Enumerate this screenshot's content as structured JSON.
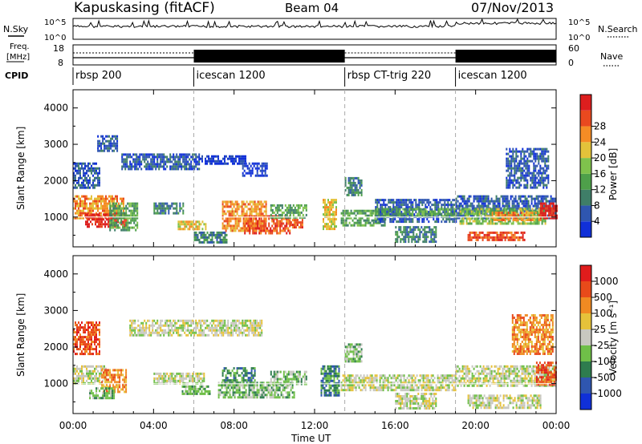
{
  "header": {
    "station": "Kapuskasing (fitACF)",
    "beam": "Beam 04",
    "date": "07/Nov/2013"
  },
  "noise_panel": {
    "left_label": "N.Sky",
    "right_label": "N.Search",
    "tick_top": "10^5",
    "tick_bottom": "10^0"
  },
  "freq_panel": {
    "left_label_line1": "Freq.",
    "left_label_line2": "[MHz]",
    "left_tick_top": "18",
    "left_tick_bottom": "8",
    "right_label": "Nave",
    "right_tick_top": "60",
    "right_tick_bottom": "0"
  },
  "cpid_panel": {
    "label": "CPID",
    "segments": [
      {
        "start_hour": 0.0,
        "end_hour": 6.0,
        "name": "rbsp 200"
      },
      {
        "start_hour": 6.0,
        "end_hour": 13.5,
        "name": "icescan 1200"
      },
      {
        "start_hour": 13.5,
        "end_hour": 19.0,
        "name": "rbsp CT-trig 220"
      },
      {
        "start_hour": 19.0,
        "end_hour": 24.0,
        "name": "icescan 1200"
      }
    ]
  },
  "x_axis": {
    "label": "Time UT",
    "ticks": [
      "00:00",
      "04:00",
      "08:00",
      "12:00",
      "16:00",
      "20:00",
      "00:00"
    ]
  },
  "colorbars": {
    "power": {
      "label": "Power [dB]",
      "ticks": [
        "4",
        "8",
        "12",
        "16",
        "20",
        "24",
        "28"
      ],
      "colors": [
        "#1030d8",
        "#2f56b0",
        "#3f7e68",
        "#4ea04a",
        "#7fc24c",
        "#e3c23a",
        "#f58c25",
        "#e9491f",
        "#dd1e1e"
      ]
    },
    "velocity": {
      "label": "Velocity [m s⁻¹]",
      "ticks": [
        "1000",
        "500",
        "100",
        "25",
        "-25",
        "-100",
        "-500",
        "-1000"
      ],
      "colors": [
        "#1030d8",
        "#2f56b0",
        "#2e7c4e",
        "#6fbf48",
        "#c8c8c0",
        "#e6c23a",
        "#f08a22",
        "#e84a1a",
        "#e01c1c"
      ]
    }
  },
  "chart_data": {
    "type": "heatmap",
    "xlabel": "Time UT",
    "ylabel": "Slant Range [km]",
    "xlim_hours": [
      0,
      24
    ],
    "ylim_km": [
      180,
      4500
    ],
    "y_ticks": [
      1000,
      2000,
      3000,
      4000
    ],
    "gridlines_vertical_hours": [
      6.0,
      13.5,
      19.0
    ],
    "panels": [
      {
        "name": "power",
        "colorbar": "power",
        "regions": [
          {
            "t0": 0.0,
            "t1": 1.3,
            "r0": 1800,
            "r1": 2500,
            "level": 1
          },
          {
            "t0": 0.0,
            "t1": 2.5,
            "r0": 1000,
            "r1": 1600,
            "level": 6
          },
          {
            "t0": 0.6,
            "t1": 2.6,
            "r0": 750,
            "r1": 1100,
            "level": 8
          },
          {
            "t0": 1.8,
            "t1": 3.2,
            "r0": 650,
            "r1": 1400,
            "level": 3
          },
          {
            "t0": 1.2,
            "t1": 2.2,
            "r0": 2850,
            "r1": 3250,
            "level": 1
          },
          {
            "t0": 2.4,
            "t1": 6.3,
            "r0": 2350,
            "r1": 2750,
            "level": 1
          },
          {
            "t0": 6.3,
            "t1": 8.6,
            "r0": 2450,
            "r1": 2700,
            "level": 0
          },
          {
            "t0": 8.4,
            "t1": 9.6,
            "r0": 2150,
            "r1": 2500,
            "level": 0
          },
          {
            "t0": 4.0,
            "t1": 5.5,
            "r0": 1100,
            "r1": 1400,
            "level": 2
          },
          {
            "t0": 5.2,
            "t1": 6.6,
            "r0": 650,
            "r1": 900,
            "level": 5
          },
          {
            "t0": 6.0,
            "t1": 7.6,
            "r0": 300,
            "r1": 600,
            "level": 2
          },
          {
            "t0": 7.4,
            "t1": 9.6,
            "r0": 650,
            "r1": 1450,
            "level": 6
          },
          {
            "t0": 8.5,
            "t1": 10.8,
            "r0": 550,
            "r1": 1050,
            "level": 7
          },
          {
            "t0": 9.8,
            "t1": 11.6,
            "r0": 1000,
            "r1": 1350,
            "level": 3
          },
          {
            "t0": 10.8,
            "t1": 11.4,
            "r0": 700,
            "r1": 950,
            "level": 7
          },
          {
            "t0": 12.4,
            "t1": 13.1,
            "r0": 650,
            "r1": 1500,
            "level": 5
          },
          {
            "t0": 13.3,
            "t1": 15.5,
            "r0": 800,
            "r1": 1200,
            "level": 3
          },
          {
            "t0": 13.5,
            "t1": 14.3,
            "r0": 1600,
            "r1": 2100,
            "level": 2
          },
          {
            "t0": 15.0,
            "t1": 19.0,
            "r0": 900,
            "r1": 1500,
            "level": 1
          },
          {
            "t0": 15.0,
            "t1": 19.0,
            "r0": 1000,
            "r1": 1250,
            "level": 3
          },
          {
            "t0": 16.0,
            "t1": 18.0,
            "r0": 350,
            "r1": 750,
            "level": 2
          },
          {
            "t0": 19.0,
            "t1": 24.0,
            "r0": 950,
            "r1": 1600,
            "level": 1
          },
          {
            "t0": 19.2,
            "t1": 23.5,
            "r0": 850,
            "r1": 1250,
            "level": 4
          },
          {
            "t0": 20.8,
            "t1": 23.2,
            "r0": 950,
            "r1": 1150,
            "level": 6
          },
          {
            "t0": 23.2,
            "t1": 24.0,
            "r0": 1000,
            "r1": 1400,
            "level": 8
          },
          {
            "t0": 19.6,
            "t1": 22.4,
            "r0": 350,
            "r1": 600,
            "level": 7
          },
          {
            "t0": 21.5,
            "t1": 23.6,
            "r0": 1800,
            "r1": 2900,
            "level": 1
          }
        ]
      },
      {
        "name": "velocity",
        "colorbar": "velocity",
        "regions": [
          {
            "t0": 0.0,
            "t1": 1.3,
            "r0": 1800,
            "r1": 2700,
            "level": 7
          },
          {
            "t0": 0.0,
            "t1": 1.6,
            "r0": 1000,
            "r1": 1500,
            "level": 4
          },
          {
            "t0": 1.4,
            "t1": 2.6,
            "r0": 800,
            "r1": 1400,
            "level": 6
          },
          {
            "t0": 0.8,
            "t1": 2.0,
            "r0": 600,
            "r1": 900,
            "level": 3
          },
          {
            "t0": 2.8,
            "t1": 9.4,
            "r0": 2350,
            "r1": 2750,
            "level": 4
          },
          {
            "t0": 4.0,
            "t1": 6.5,
            "r0": 1000,
            "r1": 1300,
            "level": 4
          },
          {
            "t0": 5.4,
            "t1": 6.8,
            "r0": 700,
            "r1": 950,
            "level": 3
          },
          {
            "t0": 7.4,
            "t1": 9.0,
            "r0": 1000,
            "r1": 1450,
            "level": 2
          },
          {
            "t0": 7.2,
            "t1": 11.0,
            "r0": 600,
            "r1": 1050,
            "level": 3
          },
          {
            "t0": 9.8,
            "t1": 11.6,
            "r0": 1000,
            "r1": 1350,
            "level": 3
          },
          {
            "t0": 12.3,
            "t1": 13.2,
            "r0": 650,
            "r1": 1500,
            "level": 2
          },
          {
            "t0": 13.3,
            "t1": 19.0,
            "r0": 800,
            "r1": 1250,
            "level": 4
          },
          {
            "t0": 13.5,
            "t1": 14.3,
            "r0": 1600,
            "r1": 2100,
            "level": 3
          },
          {
            "t0": 16.0,
            "t1": 18.0,
            "r0": 350,
            "r1": 750,
            "level": 4
          },
          {
            "t0": 19.0,
            "t1": 24.0,
            "r0": 950,
            "r1": 1500,
            "level": 4
          },
          {
            "t0": 19.6,
            "t1": 23.2,
            "r0": 350,
            "r1": 700,
            "level": 4
          },
          {
            "t0": 23.0,
            "t1": 24.0,
            "r0": 1000,
            "r1": 1600,
            "level": 7
          },
          {
            "t0": 21.8,
            "t1": 23.8,
            "r0": 1800,
            "r1": 2900,
            "level": 6
          }
        ]
      }
    ]
  }
}
